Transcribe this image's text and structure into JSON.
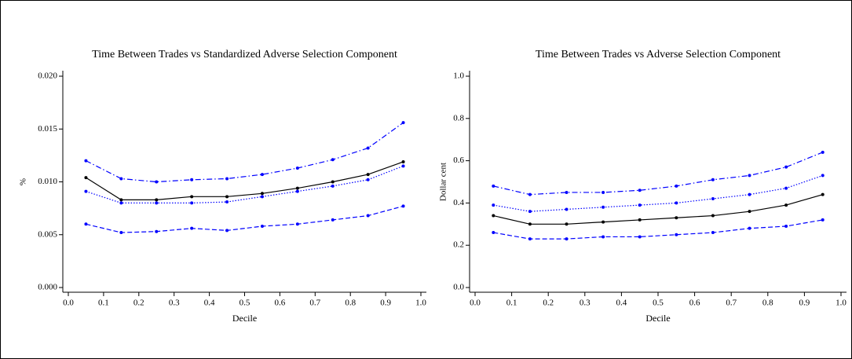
{
  "chart_data": [
    {
      "type": "line",
      "title": "Time Between Trades vs Standardized Adverse Selection Component",
      "x_label": "Decile",
      "y_label": "%",
      "x": [
        0.05,
        0.15,
        0.25,
        0.35,
        0.45,
        0.55,
        0.65,
        0.75,
        0.85,
        0.95
      ],
      "xlim": [
        0,
        1
      ],
      "xticks": [
        {
          "value": 0,
          "label": "0.0"
        },
        0.1,
        0.2,
        0.3,
        0.4,
        0.5,
        0.6,
        0.7,
        0.8,
        0.9,
        {
          "value": 1,
          "label": "1.0"
        }
      ],
      "ylim": [
        0,
        0.02
      ],
      "yticks": [
        {
          "value": 0,
          "label": "0.000"
        },
        0.005,
        {
          "value": 0.01,
          "label": "0.010"
        },
        0.015,
        {
          "value": 0.02,
          "label": "0.020"
        }
      ],
      "series": [
        {
          "color": "#0000ff",
          "style": "dashdot",
          "values": [
            0.012,
            0.0103,
            0.01,
            0.0102,
            0.0103,
            0.0107,
            0.0113,
            0.0121,
            0.0132,
            0.0156
          ]
        },
        {
          "color": "#000000",
          "style": "solid",
          "values": [
            0.0104,
            0.0083,
            0.0083,
            0.0086,
            0.0086,
            0.0089,
            0.0094,
            0.01,
            0.0107,
            0.0119
          ]
        },
        {
          "color": "#0000ff",
          "style": "dotted",
          "values": [
            0.0091,
            0.008,
            0.008,
            0.008,
            0.0081,
            0.0086,
            0.0091,
            0.0096,
            0.0102,
            0.0115
          ]
        },
        {
          "color": "#0000ff",
          "style": "dashed",
          "values": [
            0.006,
            0.0052,
            0.0053,
            0.0056,
            0.0054,
            0.0058,
            0.006,
            0.0064,
            0.0068,
            0.0077
          ]
        }
      ]
    },
    {
      "type": "line",
      "title": "Time Between Trades vs Adverse Selection Component",
      "x_label": "Decile",
      "y_label": "Dollar cent",
      "x": [
        0.05,
        0.15,
        0.25,
        0.35,
        0.45,
        0.55,
        0.65,
        0.75,
        0.85,
        0.95
      ],
      "xlim": [
        0,
        1
      ],
      "xticks": [
        {
          "value": 0,
          "label": "0.0"
        },
        0.1,
        0.2,
        0.3,
        0.4,
        0.5,
        0.6,
        0.7,
        0.8,
        0.9,
        {
          "value": 1,
          "label": "1.0"
        }
      ],
      "ylim": [
        0,
        1
      ],
      "yticks": [
        {
          "value": 0,
          "label": "0.0"
        },
        0.2,
        0.4,
        0.6,
        0.8,
        {
          "value": 1,
          "label": "1.0"
        }
      ],
      "series": [
        {
          "color": "#0000ff",
          "style": "dashdot",
          "values": [
            0.48,
            0.44,
            0.45,
            0.45,
            0.46,
            0.48,
            0.51,
            0.53,
            0.57,
            0.64
          ]
        },
        {
          "color": "#0000ff",
          "style": "dotted",
          "values": [
            0.39,
            0.36,
            0.37,
            0.38,
            0.39,
            0.4,
            0.42,
            0.44,
            0.47,
            0.53
          ]
        },
        {
          "color": "#000000",
          "style": "solid",
          "values": [
            0.34,
            0.3,
            0.3,
            0.31,
            0.32,
            0.33,
            0.34,
            0.36,
            0.39,
            0.44
          ]
        },
        {
          "color": "#0000ff",
          "style": "dashed",
          "values": [
            0.26,
            0.23,
            0.23,
            0.24,
            0.24,
            0.25,
            0.26,
            0.28,
            0.29,
            0.32
          ]
        }
      ]
    }
  ]
}
